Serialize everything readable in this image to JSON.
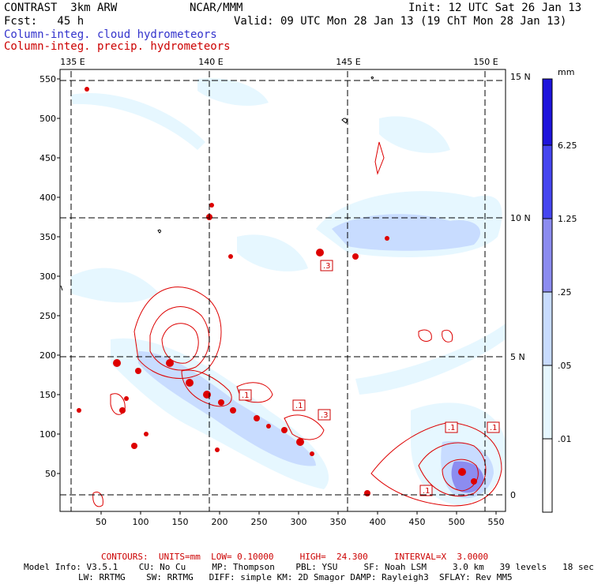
{
  "header": {
    "title_left": "CONTRAST  3km ARW",
    "title_center": "NCAR/MMM",
    "init": "Init: 12 UTC Sat 26 Jan 13",
    "fcst": "Fcst:   45 h",
    "valid": "Valid: 09 UTC Mon 28 Jan 13 (19 ChT Mon 28 Jan 13)",
    "legend_cloud": "Column-integ. cloud hydrometeors",
    "legend_precip": "Column-integ. precip. hydrometeors"
  },
  "map": {
    "top_labels": [
      "135 E",
      "140 E",
      "145 E",
      "150 E"
    ],
    "right_labels": [
      "15 N",
      "10 N",
      "5 N",
      "0"
    ],
    "x_ticks": [
      50,
      100,
      150,
      200,
      250,
      300,
      350,
      400,
      450,
      500,
      550
    ],
    "y_ticks": [
      50,
      100,
      150,
      200,
      250,
      300,
      350,
      400,
      450,
      500,
      550
    ],
    "contour_labels": [
      ".3",
      ".1",
      ".1",
      ".3",
      ".1",
      ".1",
      ".1"
    ]
  },
  "colorbar": {
    "unit": "mm",
    "levels": [
      "6.25",
      "1.25",
      ".25",
      ".05",
      ".01"
    ],
    "colors": [
      "#1e14dc",
      "#4646f0",
      "#8c8cf0",
      "#c8dcff",
      "#e6f7ff",
      "#ffffff"
    ]
  },
  "footer": {
    "contours": "CONTOURS:  UNITS=mm  LOW= 0.10000     HIGH=  24.300     INTERVAL=X  3.0000",
    "model_line1": "Model Info: V3.5.1    CU: No Cu     MP: Thompson    PBL: YSU     SF: Noah LSM     3.0 km   39 levels   18 sec",
    "model_line2": "LW: RRTMG    SW: RRTMG   DIFF: simple KM: 2D Smagor DAMP: Rayleigh3  SFLAY: Rev MM5"
  },
  "colors": {
    "cloud_light": "#e6f7ff",
    "cloud_mid": "#c8dcff",
    "cloud_heavy": "#8c8cf0",
    "precip_red": "#dd0000",
    "legend_blue": "#3333cc"
  }
}
